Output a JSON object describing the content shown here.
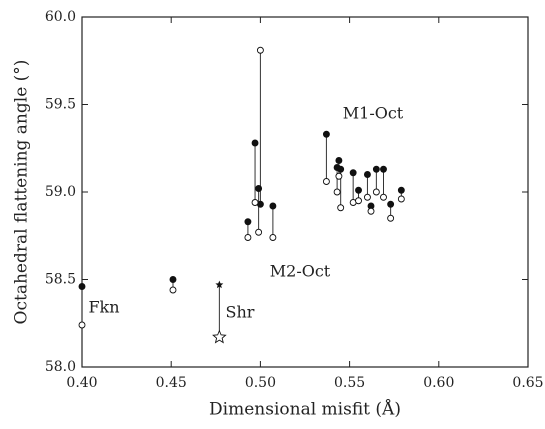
{
  "chart_data": {
    "type": "scatter",
    "x_label": "Dimensional misfit (Å)",
    "y_label": "Octahedral flattening angle (°)",
    "x": [
      0.4,
      0.451,
      0.477,
      0.493,
      0.497,
      0.499,
      0.5,
      0.507,
      0.537,
      0.543,
      0.544,
      0.545,
      0.552,
      0.555,
      0.56,
      0.562,
      0.565,
      0.569,
      0.573,
      0.579
    ],
    "marker_shapes": [
      "circle",
      "circle",
      "star",
      "circle",
      "circle",
      "circle",
      "circle",
      "circle",
      "circle",
      "circle",
      "circle",
      "circle",
      "circle",
      "circle",
      "circle",
      "circle",
      "circle",
      "circle",
      "circle",
      "circle"
    ],
    "series": [
      {
        "color": "#111111",
        "filled": true,
        "values": [
          58.46,
          58.5,
          58.47,
          58.83,
          59.28,
          59.02,
          58.93,
          58.92,
          59.33,
          59.14,
          59.18,
          59.13,
          59.11,
          59.01,
          59.1,
          58.92,
          59.13,
          59.13,
          58.93,
          59.01
        ]
      },
      {
        "color": "#111111",
        "filled": false,
        "values": [
          58.24,
          58.44,
          58.17,
          58.74,
          58.94,
          58.77,
          59.81,
          58.74,
          59.06,
          59.0,
          59.09,
          58.91,
          58.94,
          58.95,
          58.97,
          58.89,
          59.0,
          58.97,
          58.85,
          58.96
        ]
      }
    ],
    "annotations": [
      "M1-Oct",
      "M2-Oct",
      "Fkn",
      "Shr"
    ],
    "xlim": [
      0.4,
      0.65
    ],
    "xticks": [
      {
        "value": 0.4,
        "label": "0.40"
      },
      {
        "value": 0.45,
        "label": "0.45"
      },
      {
        "value": 0.5,
        "label": "0.50"
      },
      {
        "value": 0.55,
        "label": "0.55"
      },
      {
        "value": 0.6,
        "label": "0.60"
      },
      {
        "value": 0.65,
        "label": "0.65"
      }
    ],
    "ylim": [
      58.0,
      60.0
    ],
    "yticks": [
      {
        "value": 58.0,
        "label": "58.0"
      },
      {
        "value": 58.5,
        "label": "58.5"
      },
      {
        "value": 59.0,
        "label": "59.0"
      },
      {
        "value": 59.5,
        "label": "59.5"
      },
      {
        "value": 60.0,
        "label": "60.0"
      }
    ],
    "grid": false
  }
}
